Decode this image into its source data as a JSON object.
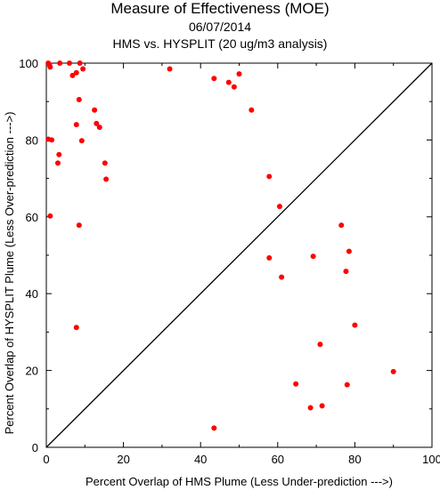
{
  "chart_data": {
    "type": "scatter",
    "title": "Measure of Effectiveness (MOE)",
    "subtitle_date": "06/07/2014",
    "subtitle": "HMS vs. HYSPLIT  (20 ug/m3 analysis)",
    "xlabel": "Percent Overlap of HMS Plume (Less Under-prediction --->)",
    "ylabel": "Percent Overlap of HYSPLIT Plume (Less Over-prediction --->)",
    "xlim": [
      0,
      100
    ],
    "ylim": [
      0,
      100
    ],
    "xticks": [
      "0",
      "20",
      "40",
      "60",
      "80",
      "100"
    ],
    "yticks": [
      "0",
      "20",
      "40",
      "60",
      "80",
      "100"
    ],
    "reference_line": "y = x",
    "marker_color": "#ff0000",
    "points": [
      {
        "x": 0.5,
        "y": 100
      },
      {
        "x": 0.8,
        "y": 99.6
      },
      {
        "x": 1.0,
        "y": 99.0
      },
      {
        "x": 3.5,
        "y": 100
      },
      {
        "x": 6.0,
        "y": 100
      },
      {
        "x": 8.7,
        "y": 100
      },
      {
        "x": 9.5,
        "y": 98.5
      },
      {
        "x": 7.8,
        "y": 97.5
      },
      {
        "x": 6.8,
        "y": 96.8
      },
      {
        "x": 8.5,
        "y": 90.5
      },
      {
        "x": 12.5,
        "y": 87.8
      },
      {
        "x": 13.0,
        "y": 84.3
      },
      {
        "x": 7.8,
        "y": 84.0
      },
      {
        "x": 13.8,
        "y": 83.3
      },
      {
        "x": 0.5,
        "y": 80.2
      },
      {
        "x": 1.4,
        "y": 80.0
      },
      {
        "x": 9.2,
        "y": 79.8
      },
      {
        "x": 3.3,
        "y": 76.2
      },
      {
        "x": 3.0,
        "y": 74.0
      },
      {
        "x": 15.2,
        "y": 74.0
      },
      {
        "x": 15.5,
        "y": 69.8
      },
      {
        "x": 1.0,
        "y": 60.2
      },
      {
        "x": 8.5,
        "y": 57.8
      },
      {
        "x": 7.8,
        "y": 31.2
      },
      {
        "x": 32.0,
        "y": 98.5
      },
      {
        "x": 43.5,
        "y": 96.0
      },
      {
        "x": 47.3,
        "y": 95.0
      },
      {
        "x": 50.0,
        "y": 97.2
      },
      {
        "x": 48.7,
        "y": 93.8
      },
      {
        "x": 53.2,
        "y": 87.8
      },
      {
        "x": 57.8,
        "y": 70.5
      },
      {
        "x": 60.5,
        "y": 62.7
      },
      {
        "x": 57.8,
        "y": 49.3
      },
      {
        "x": 61.0,
        "y": 44.3
      },
      {
        "x": 69.2,
        "y": 49.7
      },
      {
        "x": 76.5,
        "y": 57.8
      },
      {
        "x": 78.5,
        "y": 51.0
      },
      {
        "x": 77.7,
        "y": 45.8
      },
      {
        "x": 71.0,
        "y": 26.8
      },
      {
        "x": 80.0,
        "y": 31.8
      },
      {
        "x": 64.7,
        "y": 16.5
      },
      {
        "x": 68.5,
        "y": 10.3
      },
      {
        "x": 71.5,
        "y": 10.8
      },
      {
        "x": 78.0,
        "y": 16.3
      },
      {
        "x": 90.0,
        "y": 19.7
      },
      {
        "x": 43.5,
        "y": 5.0
      }
    ]
  }
}
